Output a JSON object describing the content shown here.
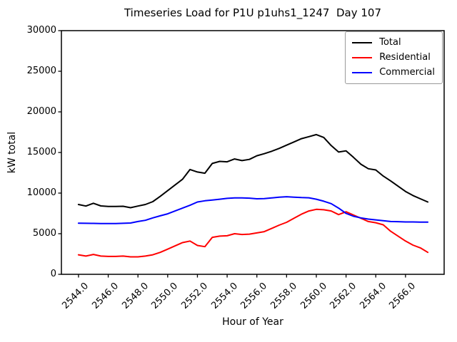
{
  "chart_data": {
    "type": "line",
    "title": "Timeseries Load for P1U p1uhs1_1247  Day 107",
    "xlabel": "Hour of Year",
    "ylabel": "kW total",
    "grid": false,
    "xlim": [
      2542.85,
      2568.6
    ],
    "ylim": [
      0,
      30000
    ],
    "x_ticks": [
      2544,
      2546,
      2548,
      2550,
      2552,
      2554,
      2556,
      2558,
      2560,
      2562,
      2564,
      2566
    ],
    "x_tick_labels": [
      "2544.0",
      "2546.0",
      "2548.0",
      "2550.0",
      "2552.0",
      "2554.0",
      "2556.0",
      "2558.0",
      "2560.0",
      "2562.0",
      "2564.0",
      "2566.0"
    ],
    "y_ticks": [
      0,
      5000,
      10000,
      15000,
      20000,
      25000,
      30000
    ],
    "y_tick_labels": [
      "0",
      "5000",
      "10000",
      "15000",
      "20000",
      "25000",
      "30000"
    ],
    "legend_position": "upper-right",
    "x": [
      2544.0,
      2544.5,
      2545.0,
      2545.5,
      2546.0,
      2546.5,
      2547.0,
      2547.5,
      2548.0,
      2548.5,
      2549.0,
      2549.5,
      2550.0,
      2550.5,
      2551.0,
      2551.5,
      2552.0,
      2552.5,
      2553.0,
      2553.5,
      2554.0,
      2554.5,
      2555.0,
      2555.5,
      2556.0,
      2556.5,
      2557.0,
      2557.5,
      2558.0,
      2558.5,
      2559.0,
      2559.5,
      2560.0,
      2560.5,
      2561.0,
      2561.5,
      2562.0,
      2562.5,
      2563.0,
      2563.5,
      2564.0,
      2564.5,
      2565.0,
      2565.5,
      2566.0,
      2566.5,
      2567.0,
      2567.5
    ],
    "series": [
      {
        "name": "Total",
        "color": "#000000",
        "values": [
          8600,
          8400,
          8750,
          8420,
          8350,
          8350,
          8380,
          8200,
          8400,
          8600,
          8950,
          9600,
          10300,
          11000,
          11700,
          12900,
          12600,
          12450,
          13650,
          13900,
          13850,
          14200,
          14000,
          14150,
          14600,
          14850,
          15150,
          15500,
          15900,
          16300,
          16700,
          16950,
          17200,
          16850,
          15850,
          15050,
          15200,
          14400,
          13550,
          13000,
          12850,
          12100,
          11500,
          10850,
          10200,
          9700,
          9300,
          8900
        ]
      },
      {
        "name": "Residential",
        "color": "#ff0000",
        "values": [
          2400,
          2250,
          2450,
          2250,
          2200,
          2200,
          2250,
          2150,
          2150,
          2250,
          2400,
          2700,
          3100,
          3500,
          3900,
          4100,
          3550,
          3400,
          4550,
          4700,
          4750,
          5000,
          4900,
          4950,
          5100,
          5250,
          5650,
          6050,
          6400,
          6900,
          7400,
          7800,
          8000,
          7950,
          7800,
          7350,
          7700,
          7300,
          6900,
          6500,
          6350,
          6100,
          5300,
          4700,
          4100,
          3600,
          3250,
          2700
        ]
      },
      {
        "name": "Commercial",
        "color": "#0000ff",
        "values": [
          6300,
          6280,
          6270,
          6250,
          6250,
          6250,
          6280,
          6320,
          6500,
          6650,
          6950,
          7200,
          7450,
          7800,
          8150,
          8500,
          8900,
          9050,
          9150,
          9250,
          9350,
          9400,
          9400,
          9380,
          9300,
          9320,
          9400,
          9500,
          9550,
          9500,
          9450,
          9420,
          9250,
          9000,
          8700,
          8150,
          7500,
          7150,
          6950,
          6800,
          6700,
          6600,
          6500,
          6480,
          6450,
          6450,
          6430,
          6430
        ]
      }
    ]
  }
}
